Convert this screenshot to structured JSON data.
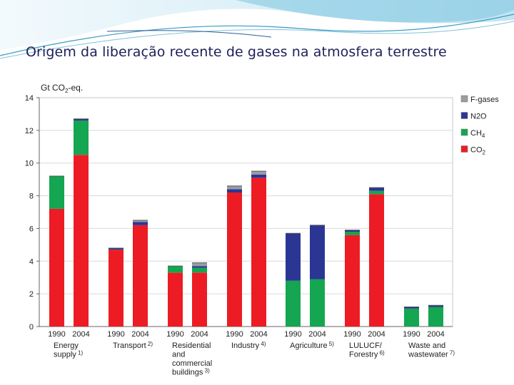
{
  "slide": {
    "title": "Origem da liberação recente de gases na atmosfera terrestre"
  },
  "colors": {
    "co2": "#ed1c24",
    "ch4": "#14a651",
    "n2o": "#2b3694",
    "fgases": "#9a9ca3"
  },
  "chart_data": {
    "type": "bar",
    "stacked": true,
    "title": "",
    "ylabel": "Gt CO2-eq.",
    "ylim": [
      0,
      14
    ],
    "yticks": [
      0,
      2,
      4,
      6,
      8,
      10,
      12,
      14
    ],
    "grid": true,
    "legend_position": "right",
    "series_order": [
      "CO2",
      "CH4",
      "N2O",
      "F-gases"
    ],
    "legend": [
      {
        "key": "fgases",
        "label": "F-gases"
      },
      {
        "key": "n2o",
        "label": "N2O"
      },
      {
        "key": "ch4",
        "label": "CH4"
      },
      {
        "key": "co2",
        "label": "CO2"
      }
    ],
    "groups": [
      {
        "label_lines": [
          "Energy",
          "supply"
        ],
        "note": "1)",
        "bars": [
          {
            "year": "1990",
            "co2": 7.2,
            "ch4": 2.0,
            "n2o": 0.0,
            "fgases": 0.0
          },
          {
            "year": "2004",
            "co2": 10.5,
            "ch4": 2.1,
            "n2o": 0.1,
            "fgases": 0.0
          }
        ]
      },
      {
        "label_lines": [
          "Transport"
        ],
        "note": "2)",
        "bars": [
          {
            "year": "1990",
            "co2": 4.7,
            "ch4": 0.0,
            "n2o": 0.1,
            "fgases": 0.0
          },
          {
            "year": "2004",
            "co2": 6.2,
            "ch4": 0.0,
            "n2o": 0.2,
            "fgases": 0.1
          }
        ]
      },
      {
        "label_lines": [
          "Residential",
          "and",
          "commercial",
          "buildings"
        ],
        "note": "3)",
        "bars": [
          {
            "year": "1990",
            "co2": 3.3,
            "ch4": 0.4,
            "n2o": 0.0,
            "fgases": 0.0
          },
          {
            "year": "2004",
            "co2": 3.3,
            "ch4": 0.3,
            "n2o": 0.1,
            "fgases": 0.2
          }
        ]
      },
      {
        "label_lines": [
          "Industry"
        ],
        "note": "4)",
        "bars": [
          {
            "year": "1990",
            "co2": 8.2,
            "ch4": 0.0,
            "n2o": 0.2,
            "fgases": 0.2
          },
          {
            "year": "2004",
            "co2": 9.1,
            "ch4": 0.0,
            "n2o": 0.2,
            "fgases": 0.2
          }
        ]
      },
      {
        "label_lines": [
          "Agriculture"
        ],
        "note": "5)",
        "bars": [
          {
            "year": "1990",
            "co2": 0.0,
            "ch4": 2.8,
            "n2o": 2.9,
            "fgases": 0.0
          },
          {
            "year": "2004",
            "co2": 0.0,
            "ch4": 2.9,
            "n2o": 3.3,
            "fgases": 0.0
          }
        ]
      },
      {
        "label_lines": [
          "LULUCF/",
          "Forestry"
        ],
        "note": "6)",
        "bars": [
          {
            "year": "1990",
            "co2": 5.6,
            "ch4": 0.2,
            "n2o": 0.1,
            "fgases": 0.0
          },
          {
            "year": "2004",
            "co2": 8.1,
            "ch4": 0.2,
            "n2o": 0.2,
            "fgases": 0.0
          }
        ]
      },
      {
        "label_lines": [
          "Waste and",
          "wastewater"
        ],
        "note": "7)",
        "bars": [
          {
            "year": "1990",
            "co2": 0.0,
            "ch4": 1.1,
            "n2o": 0.1,
            "fgases": 0.0
          },
          {
            "year": "2004",
            "co2": 0.0,
            "ch4": 1.2,
            "n2o": 0.1,
            "fgases": 0.0
          }
        ]
      }
    ]
  }
}
